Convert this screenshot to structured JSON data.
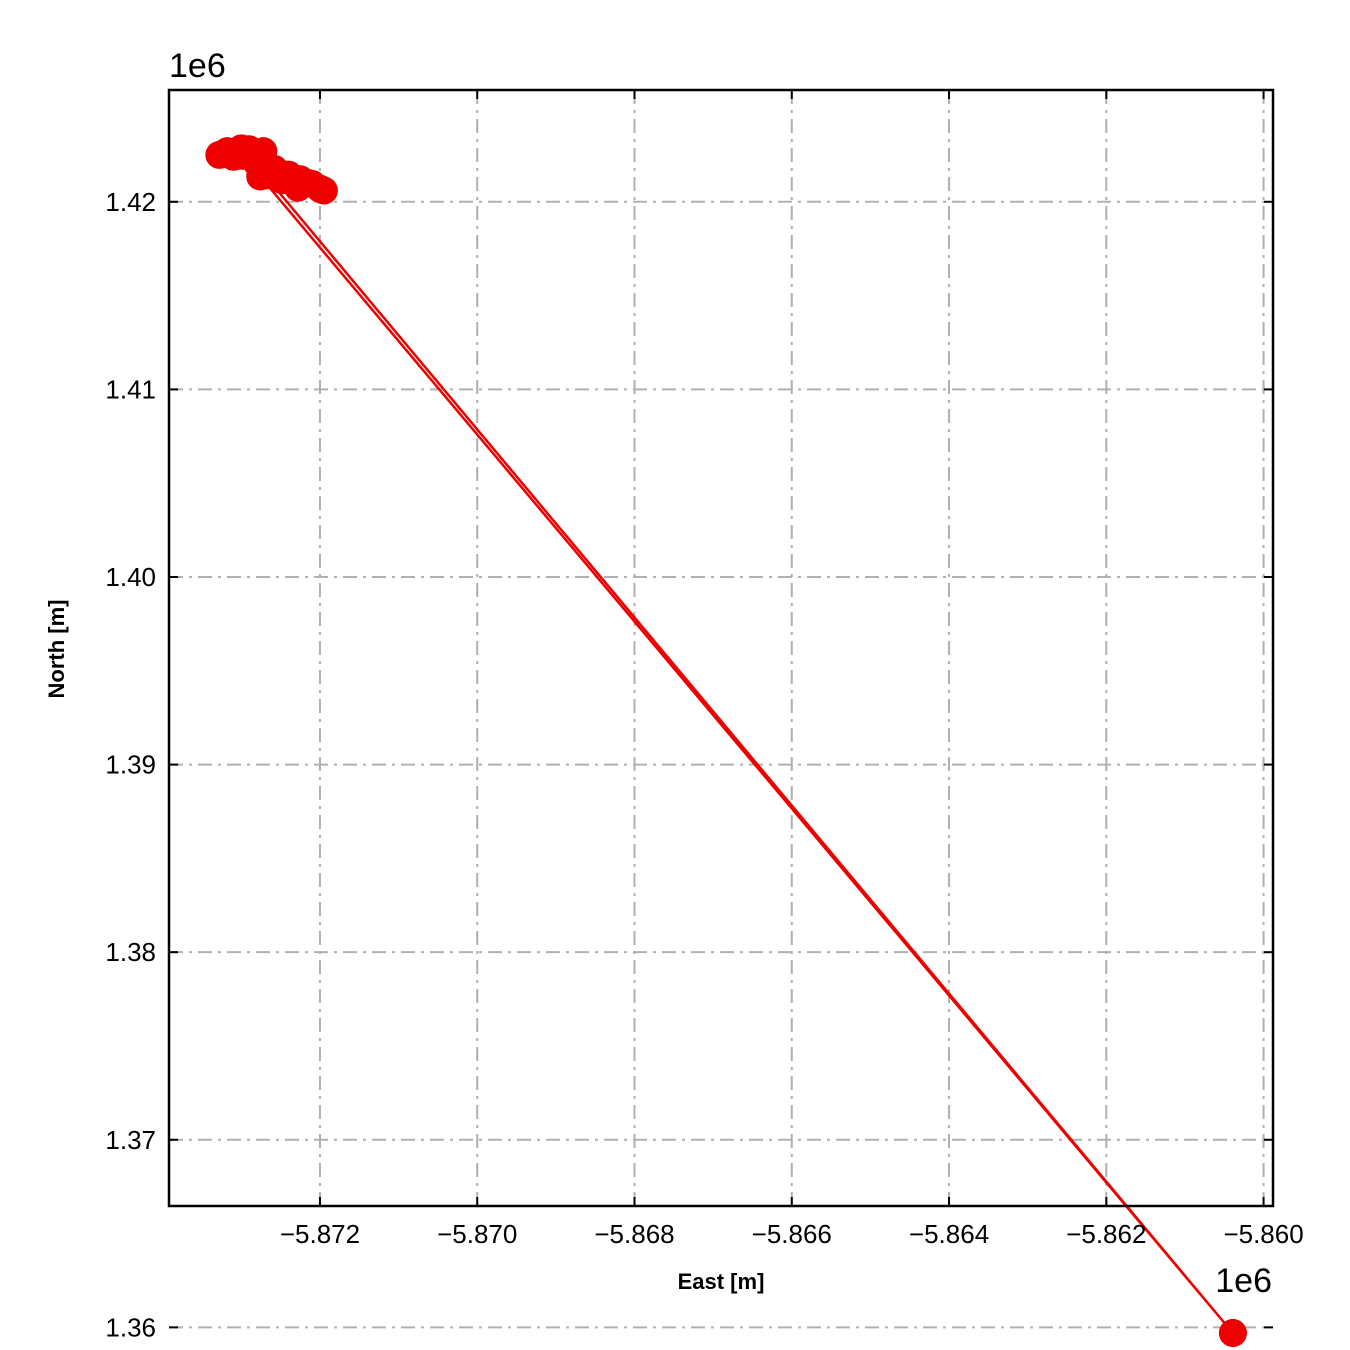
{
  "chart_data": {
    "type": "line",
    "title": "",
    "xlabel": "East [m]",
    "ylabel": "North [m]",
    "x_offset_label": "1e6",
    "y_offset_label": "1e6",
    "xlim": [
      -5.87392,
      -5.85988
    ],
    "ylim": [
      1.36647,
      1.42596
    ],
    "xticks": [
      -5.872,
      -5.87,
      -5.868,
      -5.866,
      -5.864,
      -5.862,
      -5.86
    ],
    "xtick_labels": [
      "−5.872",
      "−5.870",
      "−5.868",
      "−5.866",
      "−5.864",
      "−5.862",
      "−5.860"
    ],
    "yticks": [
      1.36,
      1.37,
      1.38,
      1.39,
      1.4,
      1.41,
      1.42
    ],
    "ytick_labels": [
      "1.36",
      "1.37",
      "1.38",
      "1.39",
      "1.40",
      "1.41",
      "1.42"
    ],
    "grid": true,
    "color": "#ee0000",
    "series": [
      {
        "x": [
          -5.86039,
          -5.87276,
          -5.8731,
          -5.8729,
          -5.87272,
          -5.87258,
          -5.8724,
          -5.87225,
          -5.8721,
          -5.87195,
          -5.87228,
          -5.87248,
          -5.87268,
          -5.8728,
          -5.87298,
          -5.87312,
          -5.87328,
          -5.87318,
          -5.873,
          -5.87285,
          -5.87265,
          -5.8725,
          -5.87232,
          -5.87215,
          -5.872,
          -5.8727,
          -5.86039
        ],
        "y": [
          1.3597,
          1.42135,
          1.4224,
          1.4228,
          1.4227,
          1.42175,
          1.42145,
          1.4212,
          1.42095,
          1.4206,
          1.42075,
          1.42115,
          1.4216,
          1.42205,
          1.42245,
          1.42265,
          1.4225,
          1.4227,
          1.42285,
          1.42245,
          1.4218,
          1.4215,
          1.42125,
          1.421,
          1.4207,
          1.4214,
          1.3597
        ]
      }
    ]
  }
}
